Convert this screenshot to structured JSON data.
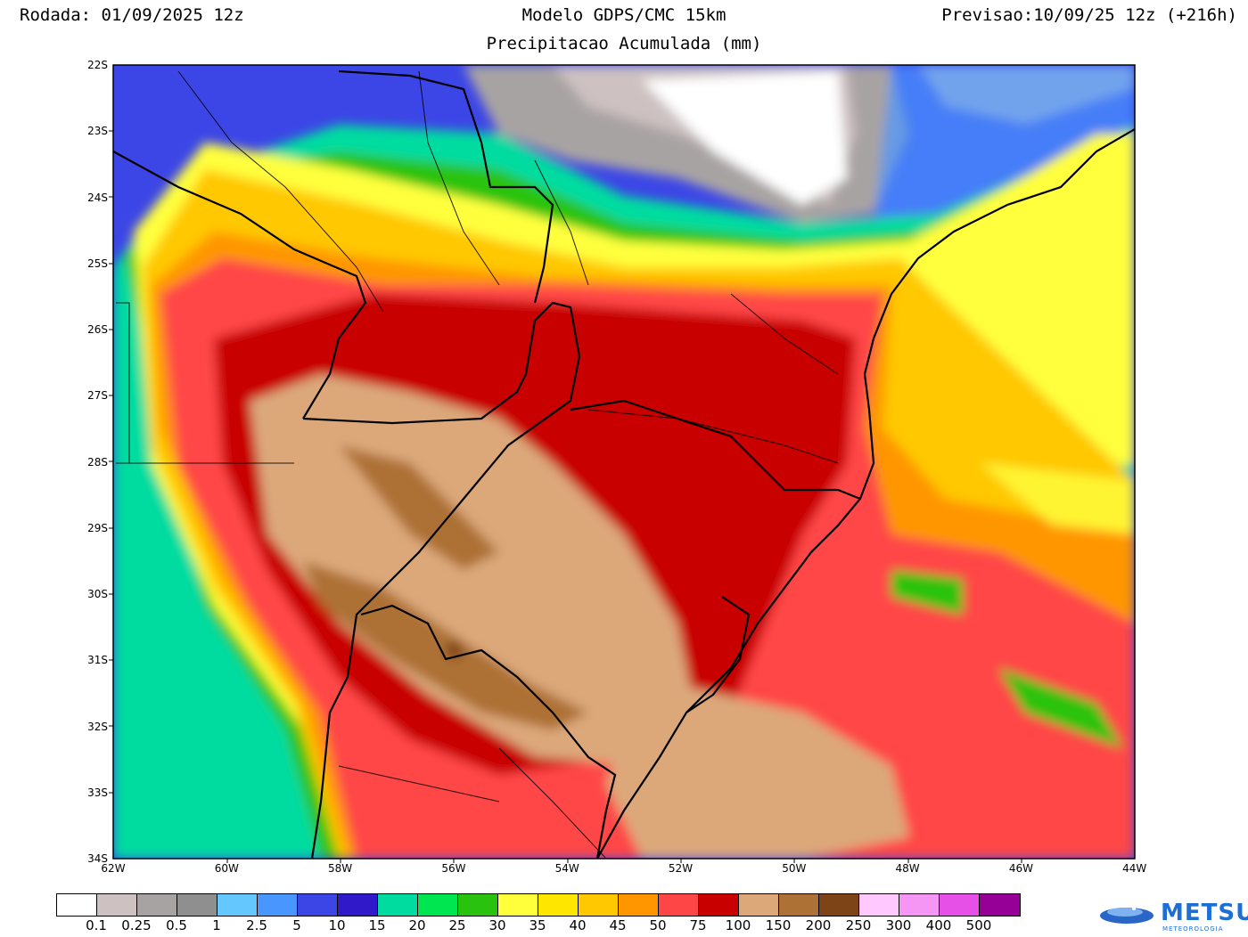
{
  "header": {
    "run": "Rodada: 01/09/2025 12z",
    "model": "Modelo GDPS/CMC 15km",
    "valid": "Previsao:10/09/25 12z (+216h)",
    "subtitle": "Precipitacao Acumulada (mm)"
  },
  "axes": {
    "lat_labels": [
      "22S",
      "23S",
      "24S",
      "25S",
      "26S",
      "27S",
      "28S",
      "29S",
      "30S",
      "31S",
      "32S",
      "33S",
      "34S"
    ],
    "lon_labels": [
      "62W",
      "60W",
      "58W",
      "56W",
      "54W",
      "52W",
      "50W",
      "48W",
      "46W",
      "44W"
    ]
  },
  "colorbar": {
    "colors": [
      "#ffffff",
      "#cdc1c1",
      "#a8a3a3",
      "#8f8f8f",
      "#64c8ff",
      "#4a96ff",
      "#3c46e6",
      "#3019c8",
      "#00dca0",
      "#00e650",
      "#29c30f",
      "#ffff3c",
      "#ffe600",
      "#ffc800",
      "#ff9600",
      "#ff4646",
      "#c80000",
      "#dca87a",
      "#ad7136",
      "#7d4517",
      "#ffc8ff",
      "#f596f5",
      "#e650e6",
      "#960096"
    ],
    "labels": [
      "0.1",
      "0.25",
      "0.5",
      "1",
      "2.5",
      "5",
      "10",
      "15",
      "20",
      "25",
      "30",
      "35",
      "40",
      "45",
      "50",
      "75",
      "100",
      "150",
      "200",
      "250",
      "300",
      "400",
      "500"
    ]
  },
  "logo": {
    "name": "METSUL",
    "tagline": "METEOROLOGIA"
  }
}
